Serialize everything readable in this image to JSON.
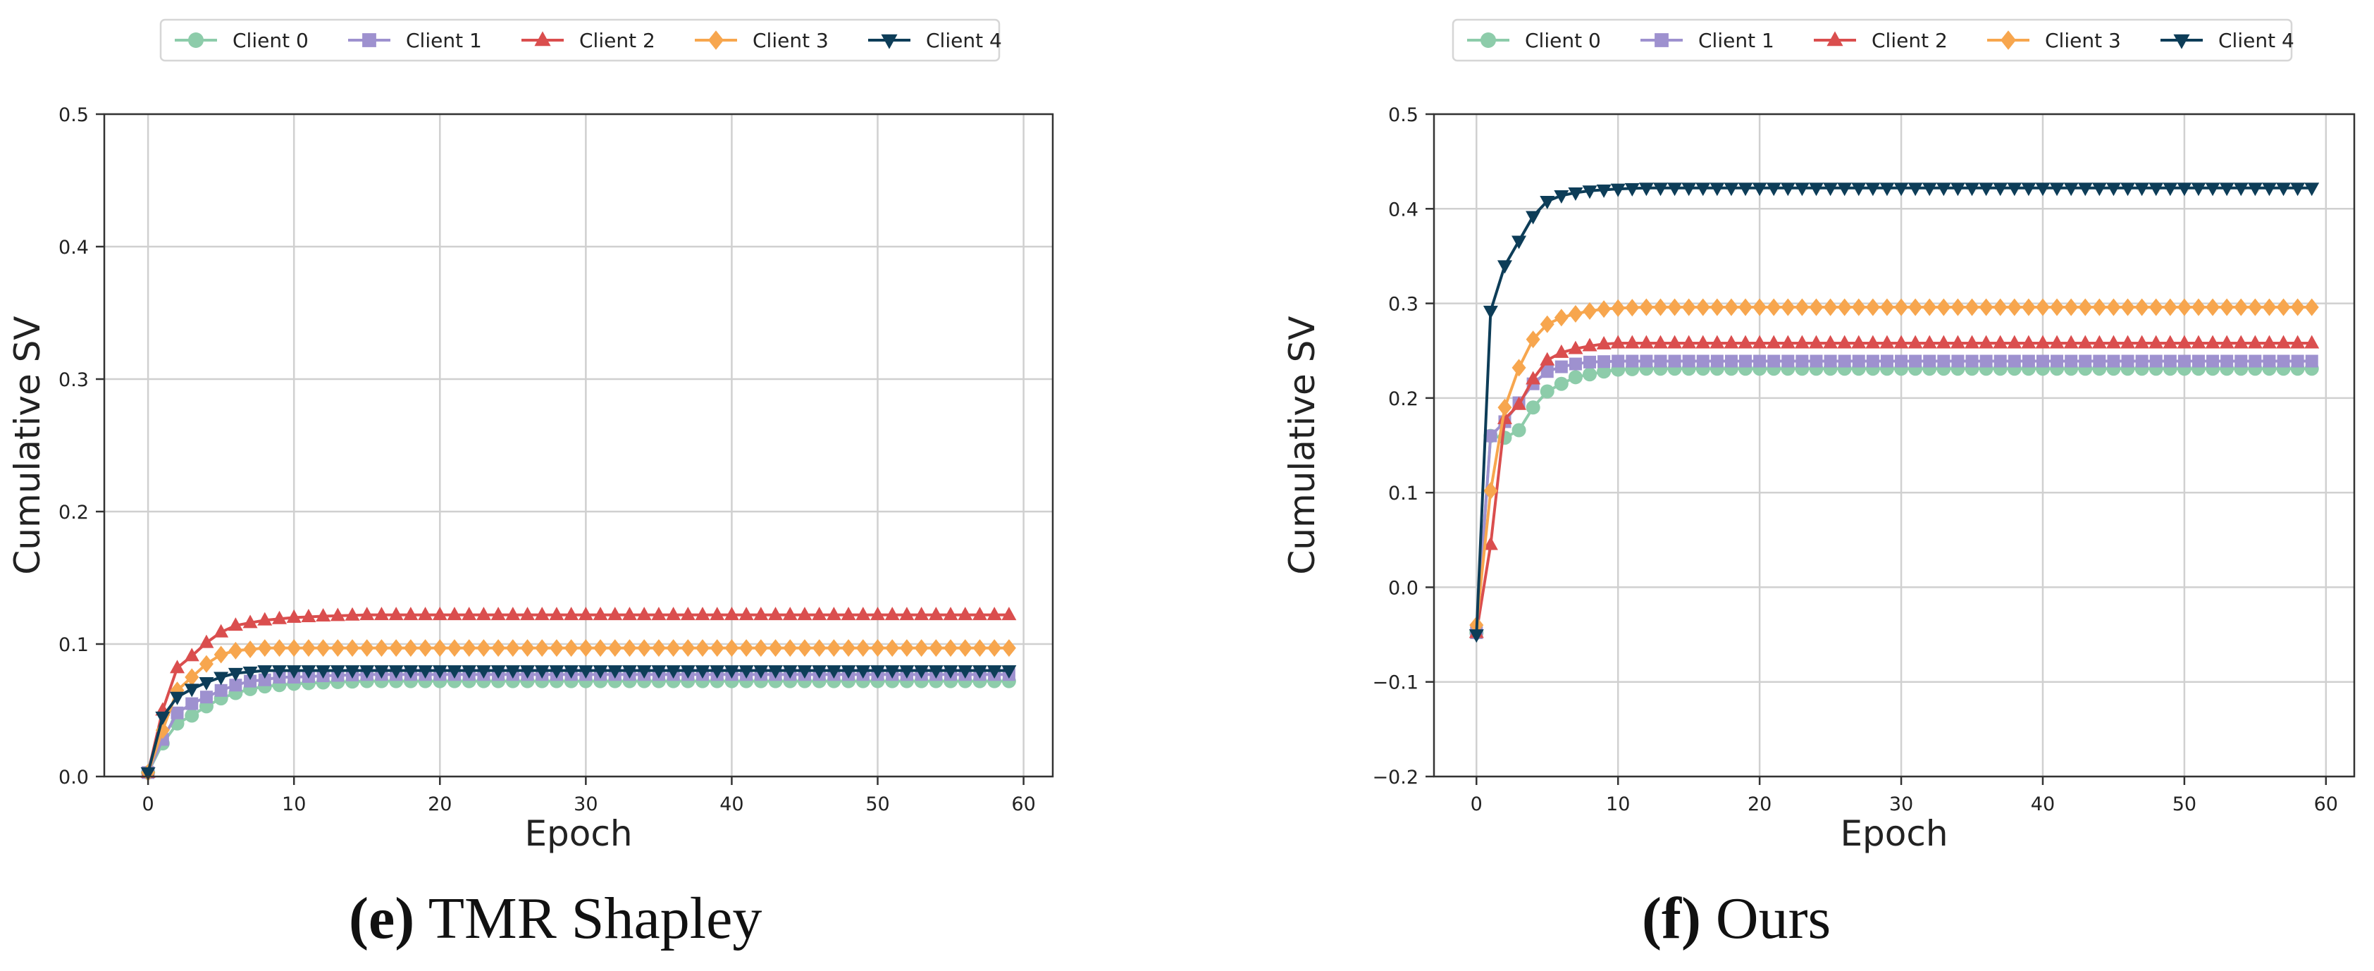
{
  "chart_data": [
    {
      "type": "line",
      "panel": "e",
      "title": "",
      "xlabel": "Epoch",
      "ylabel": "Cumulative SV",
      "xlim": [
        -3,
        62
      ],
      "ylim": [
        0.0,
        0.5
      ],
      "xticks": [
        0,
        10,
        20,
        30,
        40,
        50,
        60
      ],
      "yticks": [
        0.0,
        0.1,
        0.2,
        0.3,
        0.4,
        0.5
      ],
      "grid": true,
      "legend": "top-center",
      "x": [
        0,
        1,
        2,
        3,
        4,
        5,
        6,
        7,
        8,
        9,
        10,
        11,
        12,
        13,
        14,
        15,
        16,
        17,
        18,
        19,
        20,
        21,
        22,
        23,
        24,
        25,
        26,
        27,
        28,
        29,
        30,
        31,
        32,
        33,
        34,
        35,
        36,
        37,
        38,
        39,
        40,
        41,
        42,
        43,
        44,
        45,
        46,
        47,
        48,
        49,
        50,
        51,
        52,
        53,
        54,
        55,
        56,
        57,
        58,
        59
      ],
      "series": [
        {
          "name": "Client 0",
          "key": "c0",
          "anchors": [
            [
              0,
              0.003
            ],
            [
              1,
              0.025
            ],
            [
              2,
              0.04
            ],
            [
              3,
              0.046
            ],
            [
              4,
              0.053
            ],
            [
              5,
              0.059
            ],
            [
              6,
              0.063
            ],
            [
              7,
              0.066
            ],
            [
              8,
              0.068
            ],
            [
              9,
              0.069
            ],
            [
              10,
              0.07
            ],
            [
              12,
              0.071
            ],
            [
              15,
              0.072
            ],
            [
              59,
              0.072
            ]
          ]
        },
        {
          "name": "Client 1",
          "key": "c1",
          "anchors": [
            [
              0,
              0.003
            ],
            [
              1,
              0.028
            ],
            [
              2,
              0.048
            ],
            [
              3,
              0.055
            ],
            [
              4,
              0.06
            ],
            [
              5,
              0.065
            ],
            [
              6,
              0.069
            ],
            [
              7,
              0.072
            ],
            [
              8,
              0.073
            ],
            [
              9,
              0.075
            ],
            [
              10,
              0.075
            ],
            [
              12,
              0.076
            ],
            [
              15,
              0.077
            ],
            [
              59,
              0.077
            ]
          ]
        },
        {
          "name": "Client 2",
          "key": "c2",
          "anchors": [
            [
              0,
              0.003
            ],
            [
              1,
              0.05
            ],
            [
              2,
              0.082
            ],
            [
              3,
              0.091
            ],
            [
              4,
              0.101
            ],
            [
              5,
              0.109
            ],
            [
              6,
              0.114
            ],
            [
              7,
              0.116
            ],
            [
              8,
              0.118
            ],
            [
              9,
              0.119
            ],
            [
              10,
              0.12
            ],
            [
              12,
              0.121
            ],
            [
              15,
              0.122
            ],
            [
              20,
              0.122
            ],
            [
              59,
              0.122
            ]
          ]
        },
        {
          "name": "Client 3",
          "key": "c3",
          "anchors": [
            [
              0,
              0.003
            ],
            [
              1,
              0.035
            ],
            [
              2,
              0.065
            ],
            [
              3,
              0.075
            ],
            [
              4,
              0.085
            ],
            [
              5,
              0.092
            ],
            [
              6,
              0.095
            ],
            [
              7,
              0.096
            ],
            [
              8,
              0.097
            ],
            [
              10,
              0.097
            ],
            [
              59,
              0.097
            ]
          ]
        },
        {
          "name": "Client 4",
          "key": "c4",
          "anchors": [
            [
              0,
              0.003
            ],
            [
              1,
              0.045
            ],
            [
              2,
              0.06
            ],
            [
              3,
              0.066
            ],
            [
              4,
              0.071
            ],
            [
              5,
              0.075
            ],
            [
              6,
              0.078
            ],
            [
              7,
              0.079
            ],
            [
              8,
              0.08
            ],
            [
              10,
              0.08
            ],
            [
              59,
              0.08
            ]
          ]
        }
      ]
    },
    {
      "type": "line",
      "panel": "f",
      "title": "",
      "xlabel": "Epoch",
      "ylabel": "Cumulative SV",
      "xlim": [
        -3,
        62
      ],
      "ylim": [
        -0.2,
        0.5
      ],
      "xticks": [
        0,
        10,
        20,
        30,
        40,
        50,
        60
      ],
      "yticks": [
        -0.2,
        -0.1,
        0.0,
        0.1,
        0.2,
        0.3,
        0.4,
        0.5
      ],
      "grid": true,
      "legend": "top-center",
      "x": [
        0,
        1,
        2,
        3,
        4,
        5,
        6,
        7,
        8,
        9,
        10,
        11,
        12,
        13,
        14,
        15,
        16,
        17,
        18,
        19,
        20,
        21,
        22,
        23,
        24,
        25,
        26,
        27,
        28,
        29,
        30,
        31,
        32,
        33,
        34,
        35,
        36,
        37,
        38,
        39,
        40,
        41,
        42,
        43,
        44,
        45,
        46,
        47,
        48,
        49,
        50,
        51,
        52,
        53,
        54,
        55,
        56,
        57,
        58,
        59
      ],
      "series": [
        {
          "name": "Client 0",
          "key": "c0",
          "anchors": [
            [
              0,
              -0.048
            ],
            [
              1,
              0.16
            ],
            [
              2,
              0.158
            ],
            [
              3,
              0.166
            ],
            [
              4,
              0.19
            ],
            [
              5,
              0.207
            ],
            [
              6,
              0.215
            ],
            [
              7,
              0.222
            ],
            [
              8,
              0.225
            ],
            [
              9,
              0.228
            ],
            [
              10,
              0.23
            ],
            [
              12,
              0.231
            ],
            [
              59,
              0.231
            ]
          ]
        },
        {
          "name": "Client 1",
          "key": "c1",
          "anchors": [
            [
              0,
              -0.048
            ],
            [
              1,
              0.16
            ],
            [
              2,
              0.175
            ],
            [
              3,
              0.195
            ],
            [
              4,
              0.215
            ],
            [
              5,
              0.228
            ],
            [
              6,
              0.233
            ],
            [
              7,
              0.236
            ],
            [
              8,
              0.238
            ],
            [
              10,
              0.239
            ],
            [
              59,
              0.239
            ]
          ]
        },
        {
          "name": "Client 2",
          "key": "c2",
          "anchors": [
            [
              0,
              -0.048
            ],
            [
              1,
              0.045
            ],
            [
              2,
              0.178
            ],
            [
              3,
              0.193
            ],
            [
              4,
              0.22
            ],
            [
              5,
              0.24
            ],
            [
              6,
              0.248
            ],
            [
              7,
              0.252
            ],
            [
              8,
              0.255
            ],
            [
              9,
              0.257
            ],
            [
              10,
              0.258
            ],
            [
              59,
              0.258
            ]
          ]
        },
        {
          "name": "Client 3",
          "key": "c3",
          "anchors": [
            [
              0,
              -0.04
            ],
            [
              1,
              0.102
            ],
            [
              2,
              0.19
            ],
            [
              3,
              0.232
            ],
            [
              4,
              0.262
            ],
            [
              5,
              0.278
            ],
            [
              6,
              0.285
            ],
            [
              7,
              0.289
            ],
            [
              8,
              0.292
            ],
            [
              9,
              0.294
            ],
            [
              10,
              0.295
            ],
            [
              12,
              0.296
            ],
            [
              59,
              0.296
            ]
          ]
        },
        {
          "name": "Client 4",
          "key": "c4",
          "anchors": [
            [
              0,
              -0.05
            ],
            [
              1,
              0.292
            ],
            [
              2,
              0.34
            ],
            [
              3,
              0.366
            ],
            [
              4,
              0.392
            ],
            [
              5,
              0.408
            ],
            [
              6,
              0.414
            ],
            [
              7,
              0.417
            ],
            [
              8,
              0.419
            ],
            [
              9,
              0.42
            ],
            [
              10,
              0.421
            ],
            [
              12,
              0.422
            ],
            [
              15,
              0.422
            ],
            [
              59,
              0.422
            ]
          ]
        }
      ]
    }
  ],
  "legend": {
    "c0": "Client 0",
    "c1": "Client 1",
    "c2": "Client 2",
    "c3": "Client 3",
    "c4": "Client 4"
  },
  "styles": {
    "c0": {
      "color": "#8dccaa",
      "marker": "circle"
    },
    "c1": {
      "color": "#9e91cf",
      "marker": "square"
    },
    "c2": {
      "color": "#da4e4e",
      "marker": "triangle-up"
    },
    "c3": {
      "color": "#f7a64e",
      "marker": "diamond"
    },
    "c4": {
      "color": "#0d3d58",
      "marker": "triangle-down"
    }
  },
  "captions": {
    "e": {
      "letter": "(e)",
      "text": " TMR Shapley"
    },
    "f": {
      "letter": "(f)",
      "text": " Ours"
    }
  }
}
